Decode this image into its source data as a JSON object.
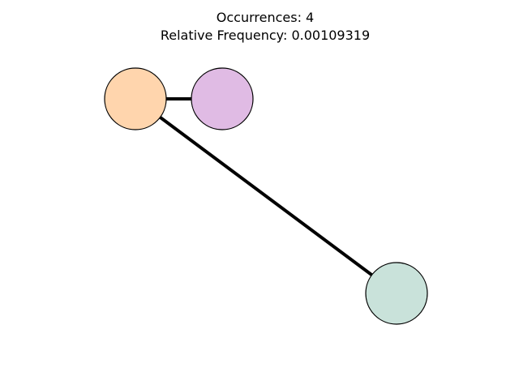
{
  "title": {
    "line1": "Occurrences: 4",
    "line2": "Relative Frequency: 0.00109319"
  },
  "graph": {
    "nodes": [
      {
        "id": "node-a",
        "color": "#ffd5ad"
      },
      {
        "id": "node-b",
        "color": "#e0bbe4"
      },
      {
        "id": "node-c",
        "color": "#c9e2da"
      }
    ],
    "edges": [
      {
        "from": "node-a",
        "to": "node-b"
      },
      {
        "from": "node-a",
        "to": "node-c"
      }
    ],
    "edge_color": "#000000",
    "node_outline_color": "#000000"
  }
}
